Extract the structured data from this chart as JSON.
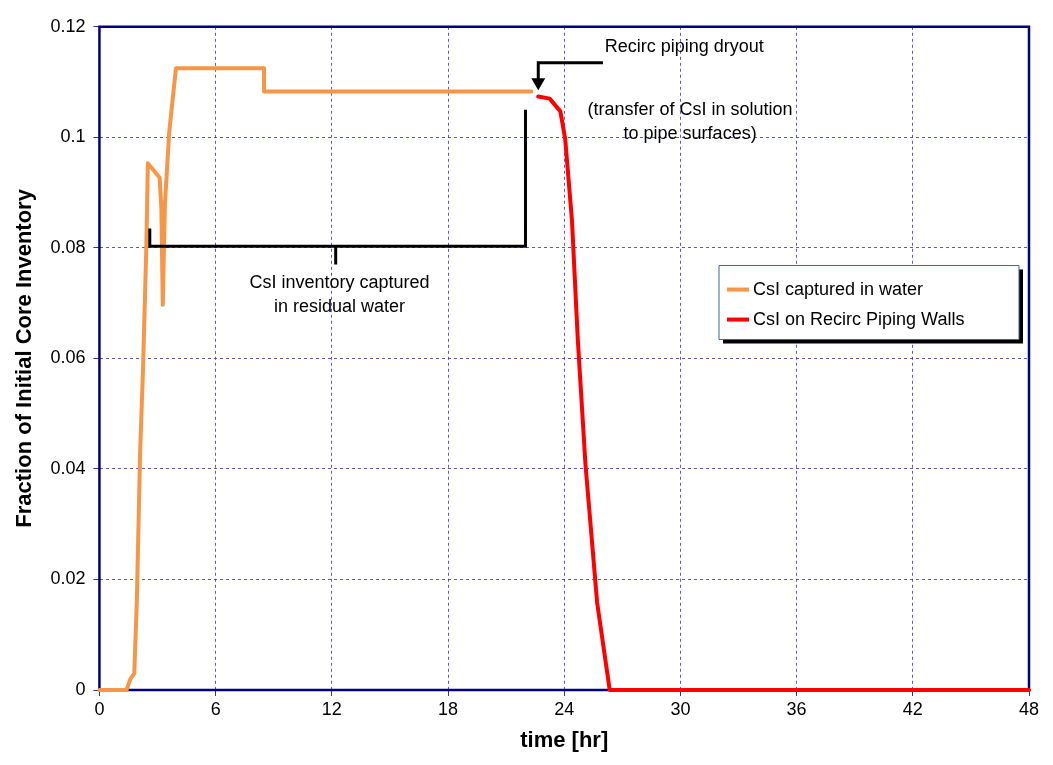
{
  "chart_data": {
    "type": "line",
    "xlabel": "time [hr]",
    "ylabel": "Fraction of Initial Core Inventory",
    "xlim": [
      0,
      48
    ],
    "xticks": [
      0,
      6,
      12,
      18,
      24,
      30,
      36,
      42,
      48
    ],
    "ylim": [
      0,
      0.12
    ],
    "yticks": [
      0,
      0.02,
      0.04,
      0.06,
      0.08,
      0.1,
      0.12
    ],
    "grid": true,
    "legend": "right",
    "marker": "none",
    "line_style": "solid",
    "series": [
      {
        "name": "CsI captured in water",
        "color": "#f79646",
        "x": [
          0,
          1.4,
          1.6,
          1.8,
          1.93,
          2.1,
          2.25,
          2.42,
          2.5,
          3.11,
          3.2,
          3.27,
          3.38,
          3.6,
          3.95,
          8.5,
          8.5,
          22.3
        ],
        "values": [
          0,
          0,
          0.002,
          0.003,
          0.016,
          0.043,
          0.058,
          0.08,
          0.0953,
          0.0927,
          0.087,
          0.0697,
          0.0878,
          0.1008,
          0.1125,
          0.1125,
          0.1083,
          0.1083
        ]
      },
      {
        "name": "CsI on Recirc Piping Walls",
        "color": "#ff0000",
        "x": [
          22.66,
          23.25,
          23.8,
          24.05,
          24.4,
          24.7,
          25.1,
          25.7,
          26.35,
          48
        ],
        "values": [
          0.1074,
          0.107,
          0.1047,
          0.0997,
          0.085,
          0.0635,
          0.0407,
          0.0158,
          0,
          0
        ]
      }
    ],
    "annotations": [
      "Recirc piping dryout",
      "(transfer of CsI in solution\nto pipe surfaces)",
      "CsI inventory captured\nin residual water"
    ]
  }
}
